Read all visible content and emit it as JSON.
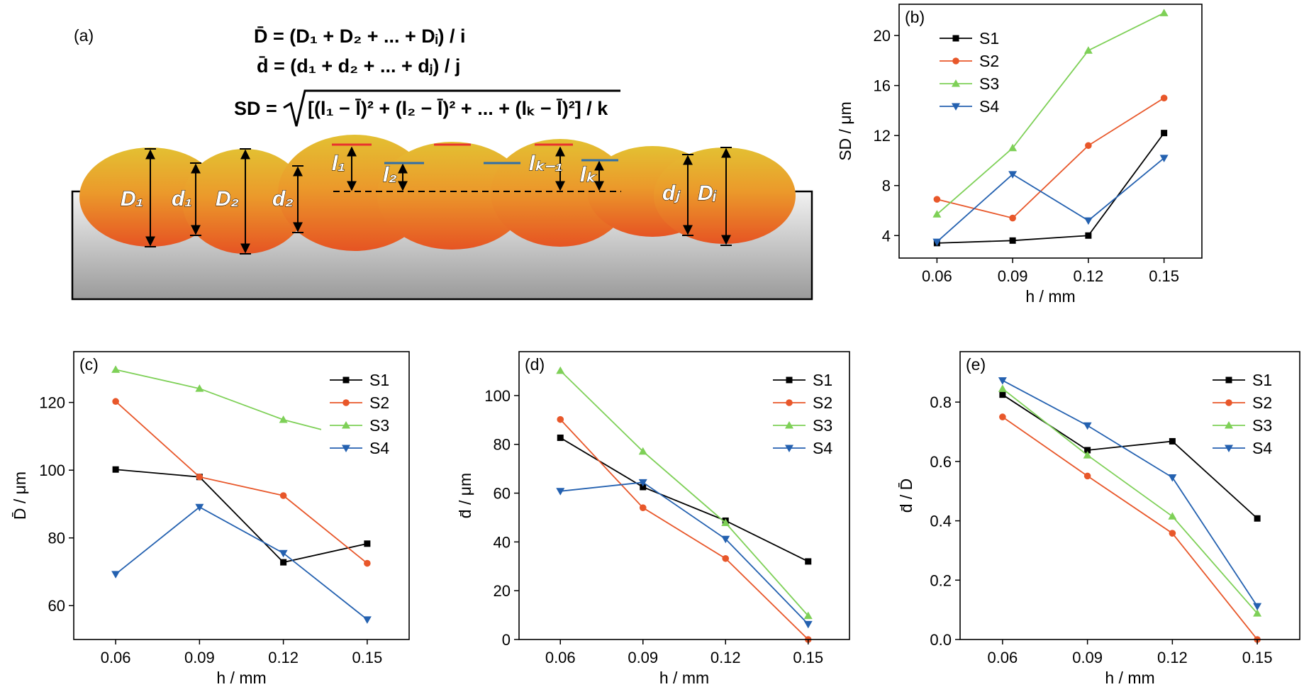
{
  "figure": {
    "panel_a": {
      "label": "(a)",
      "eq1": "D̄ = (D₁ + D₂ + ... + Dᵢ) / i",
      "eq2": "d̄ = (d₁ + d₂ + ... + dⱼ) / j",
      "eq3_lhs": "SD =",
      "eq3_rhs": "[(l₁ − l̄)² + (l₂ − l̄)² + ... + (lₖ − l̄)²] / k",
      "symbols": {
        "D1": "D₁",
        "d1": "d₁",
        "D2": "D₂",
        "d2": "d₂",
        "l1": "l₁",
        "l2": "l₂",
        "lk1": "lₖ₋₁",
        "lk": "lₖ",
        "dj": "dⱼ",
        "Di": "Dᵢ"
      },
      "colors": {
        "substrate": "#c4c4c4",
        "track_top": "#e3c032",
        "track_bottom": "#e65423",
        "red_mark": "#e8322d",
        "blue_mark": "#2f6ea8"
      }
    }
  },
  "series_style": [
    {
      "name": "S1",
      "color": "#000000",
      "marker": "square"
    },
    {
      "name": "S2",
      "color": "#e8572a",
      "marker": "circle"
    },
    {
      "name": "S3",
      "color": "#7ed057",
      "marker": "triangle-up"
    },
    {
      "name": "S4",
      "color": "#2461b0",
      "marker": "triangle-down"
    }
  ],
  "chart_data": [
    {
      "panel": "(b)",
      "type": "line",
      "x": [
        0.06,
        0.09,
        0.12,
        0.15
      ],
      "xticks": [
        "0.06",
        "0.09",
        "0.12",
        "0.15"
      ],
      "xlim": [
        0.045,
        0.165
      ],
      "yticks": [
        4,
        8,
        12,
        16,
        20
      ],
      "ylim": [
        2.2,
        22.5
      ],
      "xlabel": "h / mm",
      "ylabel": "SD / μm",
      "legend": "top-left",
      "series": [
        {
          "name": "S1",
          "values": [
            3.4,
            3.6,
            4.0,
            12.2
          ]
        },
        {
          "name": "S2",
          "values": [
            6.9,
            5.4,
            11.2,
            15.0
          ]
        },
        {
          "name": "S3",
          "values": [
            5.7,
            11.0,
            18.8,
            21.8
          ]
        },
        {
          "name": "S4",
          "values": [
            3.5,
            8.9,
            5.2,
            10.2
          ]
        }
      ]
    },
    {
      "panel": "(c)",
      "type": "line",
      "x": [
        0.06,
        0.09,
        0.12,
        0.15
      ],
      "xticks": [
        "0.06",
        "0.09",
        "0.12",
        "0.15"
      ],
      "xlim": [
        0.045,
        0.165
      ],
      "yticks": [
        60,
        80,
        100,
        120
      ],
      "ylim": [
        50,
        135
      ],
      "xlabel": "h / mm",
      "ylabel": "D̄ / μm",
      "legend": "top-right",
      "series": [
        {
          "name": "S1",
          "values": [
            100.2,
            98.0,
            72.8,
            78.3
          ]
        },
        {
          "name": "S2",
          "values": [
            120.3,
            98.0,
            92.5,
            72.5
          ]
        },
        {
          "name": "S3",
          "values": [
            129.7,
            124.1,
            114.9,
            108.5
          ]
        },
        {
          "name": "S4",
          "values": [
            69.3,
            89.1,
            75.5,
            55.9
          ]
        }
      ]
    },
    {
      "panel": "(d)",
      "type": "line",
      "x": [
        0.06,
        0.09,
        0.12,
        0.15
      ],
      "xticks": [
        "0.06",
        "0.09",
        "0.12",
        "0.15"
      ],
      "xlim": [
        0.045,
        0.165
      ],
      "yticks": [
        0,
        20,
        40,
        60,
        80,
        100
      ],
      "ylim": [
        0,
        118
      ],
      "xlabel": "h / mm",
      "ylabel": "d̄ / μm",
      "legend": "top-right",
      "series": [
        {
          "name": "S1",
          "values": [
            82.7,
            62.5,
            48.7,
            32.0
          ]
        },
        {
          "name": "S2",
          "values": [
            90.2,
            54.0,
            33.2,
            0.0
          ]
        },
        {
          "name": "S3",
          "values": [
            110.2,
            77.1,
            47.8,
            9.7
          ]
        },
        {
          "name": "S4",
          "values": [
            60.8,
            64.4,
            41.2,
            6.3
          ]
        }
      ]
    },
    {
      "panel": "(e)",
      "type": "line",
      "x": [
        0.06,
        0.09,
        0.12,
        0.15
      ],
      "xticks": [
        "0.06",
        "0.09",
        "0.12",
        "0.15"
      ],
      "xlim": [
        0.045,
        0.165
      ],
      "yticks": [
        0.0,
        0.2,
        0.4,
        0.6,
        0.8
      ],
      "ytick_labels": [
        "0.0",
        "0.2",
        "0.4",
        "0.6",
        "0.8"
      ],
      "ylim": [
        0,
        0.97
      ],
      "xlabel": "h / mm",
      "ylabel": "d̄ / D̄",
      "legend": "top-right",
      "series": [
        {
          "name": "S1",
          "values": [
            0.825,
            0.638,
            0.668,
            0.408
          ]
        },
        {
          "name": "S2",
          "values": [
            0.75,
            0.551,
            0.358,
            0.0
          ]
        },
        {
          "name": "S3",
          "values": [
            0.845,
            0.621,
            0.415,
            0.088
          ]
        },
        {
          "name": "S4",
          "values": [
            0.873,
            0.721,
            0.546,
            0.112
          ]
        }
      ]
    }
  ]
}
